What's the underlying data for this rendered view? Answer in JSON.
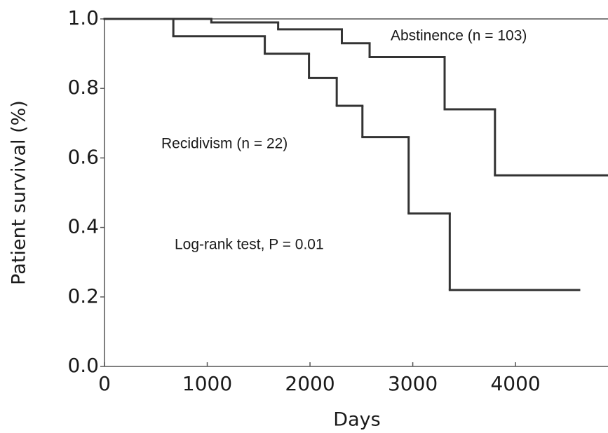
{
  "chart_data": {
    "type": "step",
    "xlabel": "Days",
    "ylabel": "Patient survival  (%)",
    "xlim": [
      0,
      4900
    ],
    "ylim": [
      0,
      1
    ],
    "xticks": [
      0,
      1000,
      2000,
      3000,
      4000
    ],
    "yticks": [
      {
        "value": 0,
        "label": "0.0"
      },
      0.2,
      0.4,
      0.6,
      0.8,
      {
        "value": 1,
        "label": "1.0"
      }
    ],
    "annotations": [
      "Log-rank test, P = 0.01"
    ],
    "series": [
      {
        "name": "Abstinence (n = 103)",
        "color": "#333333",
        "x": [
          0,
          1040,
          1690,
          2310,
          2580,
          3310,
          3800,
          4900
        ],
        "values": [
          1.0,
          0.99,
          0.97,
          0.93,
          0.89,
          0.74,
          0.55,
          0.55
        ]
      },
      {
        "name": "Recidivism (n = 22)",
        "color": "#333333",
        "x": [
          0,
          670,
          1560,
          1990,
          2260,
          2510,
          2960,
          3360,
          4620
        ],
        "values": [
          1.0,
          0.95,
          0.9,
          0.83,
          0.75,
          0.66,
          0.44,
          0.22,
          0.22
        ]
      }
    ]
  }
}
